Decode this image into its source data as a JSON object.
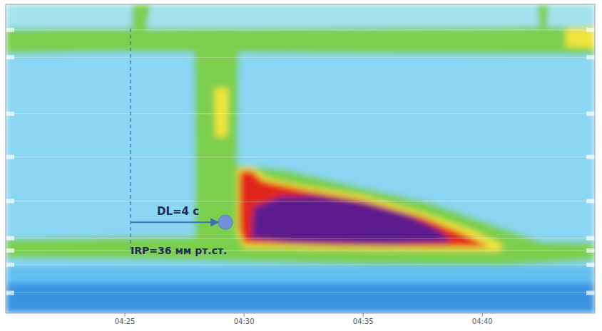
{
  "chart_data": {
    "type": "heatmap",
    "xlim": [
      260,
      284.72
    ],
    "xticks": [
      {
        "value": 265,
        "label": "04:25"
      },
      {
        "value": 270,
        "label": "04:30"
      },
      {
        "value": 275,
        "label": "04:35"
      },
      {
        "value": 280,
        "label": "04:40"
      }
    ],
    "ylim": [
      0,
      35
    ],
    "yticks": [
      2.9,
      6,
      12.4,
      17.3,
      22.3,
      26.5,
      27.9,
      29.5,
      32.7
    ],
    "grid": true,
    "tick_labels": "x",
    "bands": [
      {
        "pressure": 10,
        "color": "#8ad6f3",
        "regions": [
          [
            [
              260,
              0
            ],
            [
              284.72,
              0
            ],
            [
              284.72,
              35
            ],
            [
              260,
              35
            ]
          ]
        ]
      },
      {
        "pressure": 5,
        "color": "#64c0ef",
        "regions": [
          [
            [
              260,
              29.6
            ],
            [
              284.72,
              29.6
            ],
            [
              284.72,
              31.6
            ],
            [
              260,
              31.6
            ]
          ]
        ]
      },
      {
        "pressure": 0,
        "color": "#3a93e0",
        "regions": [
          [
            [
              260,
              31.6
            ],
            [
              284.72,
              31.6
            ],
            [
              284.72,
              35
            ],
            [
              260,
              35
            ]
          ]
        ]
      },
      {
        "pressure": 15,
        "color": "#a4e2f0",
        "regions": [
          [
            [
              260,
              0
            ],
            [
              284.72,
              0
            ],
            [
              284.72,
              2.6
            ],
            [
              260,
              2.6
            ]
          ]
        ]
      },
      {
        "pressure": 30,
        "color": "#7ccf4e",
        "regions": [
          [
            [
              260,
              2.8
            ],
            [
              270,
              2.7
            ],
            [
              280,
              2.6
            ],
            [
              284.72,
              2.5
            ],
            [
              284.72,
              5.7
            ],
            [
              275,
              5.6
            ],
            [
              265,
              5.4
            ],
            [
              260,
              5.6
            ]
          ],
          [
            [
              267.9,
              2.7
            ],
            [
              269.8,
              2.7
            ],
            [
              269.7,
              26.5
            ],
            [
              267.95,
              26.5
            ]
          ],
          [
            [
              260,
              26.6
            ],
            [
              265,
              26.4
            ],
            [
              268,
              26.3
            ],
            [
              269.6,
              26.0
            ],
            [
              269.7,
              18.2
            ],
            [
              271.7,
              18.7
            ],
            [
              274.7,
              20.6
            ],
            [
              277.7,
              22.4
            ],
            [
              280.7,
              25.2
            ],
            [
              282.5,
              26.9
            ],
            [
              284.72,
              27.0
            ],
            [
              284.72,
              29.0
            ],
            [
              281,
              29.6
            ],
            [
              275,
              29.5
            ],
            [
              270,
              29.2
            ],
            [
              265,
              28.9
            ],
            [
              260,
              28.8
            ]
          ],
          [
            [
              265.3,
              0
            ],
            [
              266.1,
              0
            ],
            [
              265.9,
              2.8
            ],
            [
              265.3,
              2.8
            ]
          ],
          [
            [
              282.3,
              0
            ],
            [
              282.8,
              0
            ],
            [
              282.7,
              2.8
            ],
            [
              282.4,
              2.8
            ]
          ]
        ]
      },
      {
        "pressure": 60,
        "color": "#f0e43c",
        "regions": [
          [
            [
              268.75,
              9.5
            ],
            [
              269.35,
              9.5
            ],
            [
              269.3,
              15
            ],
            [
              268.8,
              15
            ]
          ],
          [
            [
              269.7,
              18.6
            ],
            [
              270.3,
              18.4
            ],
            [
              271,
              19.7
            ],
            [
              272.5,
              20.6
            ],
            [
              275,
              21.7
            ],
            [
              277.5,
              23.6
            ],
            [
              279.5,
              25.5
            ],
            [
              280.9,
              27.3
            ],
            [
              280.7,
              28.0
            ],
            [
              278,
              27.9
            ],
            [
              274,
              27.8
            ],
            [
              270,
              27.6
            ],
            [
              269.7,
              26
            ]
          ],
          [
            [
              283.5,
              2.7
            ],
            [
              284.72,
              2.6
            ],
            [
              284.72,
              5.0
            ],
            [
              283.5,
              4.8
            ]
          ]
        ]
      },
      {
        "pressure": 100,
        "color": "#e3261c",
        "regions": [
          [
            [
              269.8,
              19.0
            ],
            [
              270.3,
              18.8
            ],
            [
              270.8,
              20.0
            ],
            [
              272.5,
              21.0
            ],
            [
              275,
              22.2
            ],
            [
              277.5,
              24.1
            ],
            [
              279.2,
              26
            ],
            [
              280.3,
              27.5
            ],
            [
              278,
              27.5
            ],
            [
              274,
              27.4
            ],
            [
              270,
              27.1
            ],
            [
              269.8,
              25.5
            ]
          ]
        ]
      },
      {
        "pressure": 150,
        "color": "#5b1f8e",
        "regions": [
          [
            [
              270.4,
              23.0
            ],
            [
              271.5,
              21.8
            ],
            [
              273,
              21.7
            ],
            [
              275,
              22.5
            ],
            [
              276.8,
              23.8
            ],
            [
              278.2,
              25.6
            ],
            [
              278.7,
              26.9
            ],
            [
              276,
              27.2
            ],
            [
              272,
              27.0
            ],
            [
              270.3,
              26.5
            ]
          ]
        ]
      }
    ],
    "annotations": {
      "dl": {
        "label": "DL=4 с",
        "start": 265.24,
        "end": 269.22,
        "pos": 24.7
      },
      "irp": {
        "label": "IRP=36 мм рт.ст."
      }
    }
  }
}
